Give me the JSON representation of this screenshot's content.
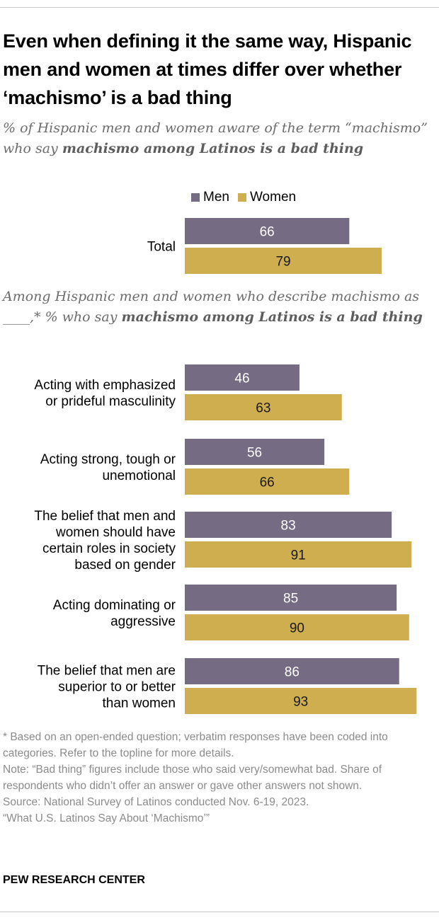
{
  "title": "Even when defining it the same way, Hispanic men and women at times differ over whether ‘machismo’ is a bad thing",
  "subtitle1": {
    "pre": "% of Hispanic men and women aware of the term “machismo” who say ",
    "bold": "machismo among Latinos is a bad thing"
  },
  "subtitle2": {
    "pre": "Among Hispanic men and women who describe machismo as ____,* % who say ",
    "bold": "machismo among Latinos is a bad thing"
  },
  "legend": {
    "men": "Men",
    "women": "Women"
  },
  "colors": {
    "men": "#756b83",
    "women": "#cfae4f"
  },
  "chart_data": {
    "type": "bar",
    "orientation": "horizontal",
    "categories": [
      "Total",
      "Acting with emphasized or prideful masculinity",
      "Acting strong, tough or unemotional",
      "The belief that men and women should have certain roles in society based on gender",
      "Acting dominating or aggressive",
      "The belief that men are superior to or better than women"
    ],
    "category_lines": [
      [
        "Total"
      ],
      [
        "Acting with emphasized",
        "or prideful masculinity"
      ],
      [
        "Acting strong, tough or",
        "unemotional"
      ],
      [
        "The belief that men and",
        "women should have",
        "certain roles in society",
        "based on gender"
      ],
      [
        "Acting dominating or",
        "aggressive"
      ],
      [
        "The belief that men are",
        "superior to or better",
        "than women"
      ]
    ],
    "series": [
      {
        "name": "Men",
        "values": [
          66,
          46,
          56,
          83,
          85,
          86
        ]
      },
      {
        "name": "Women",
        "values": [
          79,
          63,
          66,
          91,
          90,
          93
        ]
      }
    ],
    "xlim": [
      0,
      100
    ]
  },
  "notes": [
    "* Based on an open-ended question; verbatim responses have been coded into categories. Refer to the topline for more details.",
    "Note: “Bad thing” figures include those who said very/somewhat bad. Share of respondents who didn’t offer an answer or gave other answers not shown.",
    "Source: National Survey of Latinos conducted Nov. 6-19, 2023.",
    "“What U.S. Latinos Say About ‘Machismo’”"
  ],
  "source_org": "PEW RESEARCH CENTER"
}
